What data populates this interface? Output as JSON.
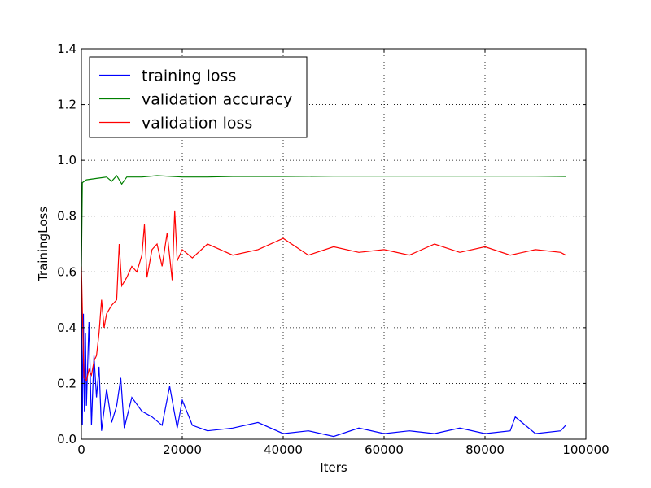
{
  "chart_data": {
    "type": "line",
    "xlabel": "Iters",
    "ylabel": "TrainingLoss",
    "xlim": [
      0,
      100000
    ],
    "ylim": [
      0,
      1.4
    ],
    "grid": true,
    "legend_position": "top-left",
    "x_ticks": [
      {
        "value": 0,
        "label": "0"
      },
      {
        "value": 20000,
        "label": "20000"
      },
      {
        "value": 40000,
        "label": "40000"
      },
      {
        "value": 60000,
        "label": "60000"
      },
      {
        "value": 80000,
        "label": "80000"
      },
      {
        "value": 100000,
        "label": "100000"
      }
    ],
    "y_ticks": [
      {
        "value": 0.0,
        "label": "0.0"
      },
      {
        "value": 0.2,
        "label": "0.2"
      },
      {
        "value": 0.4,
        "label": "0.4"
      },
      {
        "value": 0.6,
        "label": "0.6"
      },
      {
        "value": 0.8,
        "label": "0.8"
      },
      {
        "value": 1.0,
        "label": "1.0"
      },
      {
        "value": 1.2,
        "label": "1.2"
      },
      {
        "value": 1.4,
        "label": "1.4"
      }
    ],
    "series": [
      {
        "name": "training loss",
        "color": "#0000ff",
        "x": [
          0,
          200,
          400,
          600,
          800,
          1000,
          1500,
          2000,
          2500,
          3000,
          3500,
          4000,
          5000,
          6000,
          7000,
          7800,
          8500,
          10000,
          12000,
          14000,
          16000,
          17500,
          19000,
          20000,
          22000,
          25000,
          30000,
          35000,
          40000,
          45000,
          50000,
          55000,
          60000,
          65000,
          70000,
          75000,
          80000,
          85000,
          86000,
          90000,
          95000,
          96000
        ],
        "y": [
          0.56,
          0.05,
          0.45,
          0.1,
          0.38,
          0.12,
          0.42,
          0.05,
          0.3,
          0.15,
          0.26,
          0.03,
          0.18,
          0.06,
          0.12,
          0.22,
          0.04,
          0.15,
          0.1,
          0.08,
          0.05,
          0.19,
          0.04,
          0.14,
          0.05,
          0.03,
          0.04,
          0.06,
          0.02,
          0.03,
          0.01,
          0.04,
          0.02,
          0.03,
          0.02,
          0.04,
          0.02,
          0.03,
          0.08,
          0.02,
          0.03,
          0.05
        ]
      },
      {
        "name": "validation accuracy",
        "color": "#008000",
        "x": [
          0,
          200,
          1000,
          3000,
          5000,
          6000,
          7000,
          8000,
          9000,
          10000,
          12000,
          15000,
          20000,
          25000,
          30000,
          40000,
          50000,
          60000,
          70000,
          80000,
          90000,
          96000
        ],
        "y": [
          0.6,
          0.92,
          0.93,
          0.935,
          0.94,
          0.925,
          0.945,
          0.915,
          0.94,
          0.94,
          0.94,
          0.945,
          0.94,
          0.94,
          0.942,
          0.942,
          0.943,
          0.943,
          0.943,
          0.943,
          0.943,
          0.942
        ]
      },
      {
        "name": "validation loss",
        "color": "#ff0000",
        "x": [
          0,
          500,
          1000,
          1500,
          2000,
          2500,
          3000,
          3500,
          4000,
          4500,
          5000,
          6000,
          7000,
          7500,
          8000,
          9000,
          10000,
          11000,
          12000,
          12500,
          13000,
          14000,
          15000,
          16000,
          17000,
          18000,
          18500,
          19000,
          20000,
          22000,
          25000,
          30000,
          35000,
          40000,
          45000,
          50000,
          55000,
          60000,
          65000,
          70000,
          75000,
          80000,
          85000,
          90000,
          95000,
          96000
        ],
        "y": [
          0.62,
          0.22,
          0.21,
          0.25,
          0.23,
          0.28,
          0.3,
          0.38,
          0.5,
          0.4,
          0.45,
          0.48,
          0.5,
          0.7,
          0.55,
          0.58,
          0.62,
          0.6,
          0.66,
          0.77,
          0.58,
          0.68,
          0.7,
          0.62,
          0.74,
          0.57,
          0.82,
          0.64,
          0.68,
          0.65,
          0.7,
          0.66,
          0.68,
          0.72,
          0.66,
          0.69,
          0.67,
          0.68,
          0.66,
          0.7,
          0.67,
          0.69,
          0.66,
          0.68,
          0.67,
          0.66
        ]
      }
    ]
  }
}
